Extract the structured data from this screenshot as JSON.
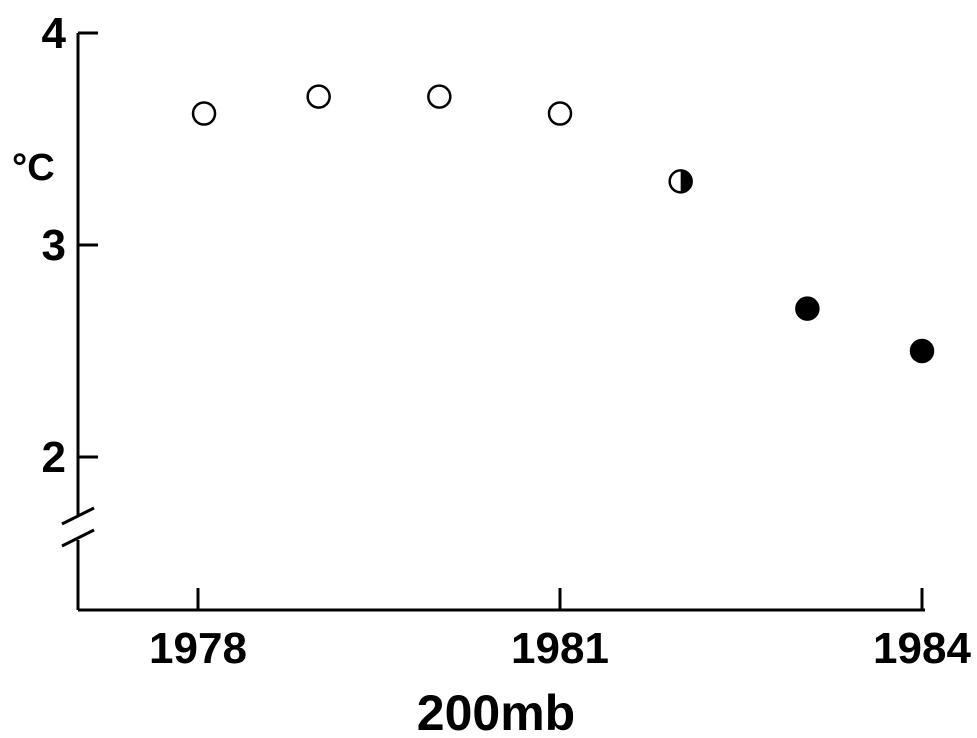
{
  "chart_data": {
    "type": "scatter",
    "title": "200mb",
    "ylabel": "°C",
    "xlabel": "",
    "xlim": [
      1977.0,
      1984.1
    ],
    "ylim": [
      1.5,
      4.0
    ],
    "y_axis_break": true,
    "xticks": [
      {
        "value": 1978,
        "label": "1978"
      },
      {
        "value": 1981,
        "label": "1981"
      },
      {
        "value": 1984,
        "label": "1984"
      }
    ],
    "yticks": [
      {
        "value": 2,
        "label": "2"
      },
      {
        "value": 3,
        "label": "3"
      },
      {
        "value": 4,
        "label": "4"
      }
    ],
    "grid": false,
    "points": [
      {
        "x": 1978.05,
        "y": 3.62,
        "marker": "open"
      },
      {
        "x": 1979.0,
        "y": 3.7,
        "marker": "open"
      },
      {
        "x": 1980.0,
        "y": 3.7,
        "marker": "open"
      },
      {
        "x": 1981.0,
        "y": 3.62,
        "marker": "open"
      },
      {
        "x": 1982.0,
        "y": 3.3,
        "marker": "half"
      },
      {
        "x": 1983.05,
        "y": 2.7,
        "marker": "filled"
      },
      {
        "x": 1984.0,
        "y": 2.5,
        "marker": "filled"
      }
    ],
    "colors": {
      "ink": "#000000",
      "background": "#ffffff"
    }
  }
}
